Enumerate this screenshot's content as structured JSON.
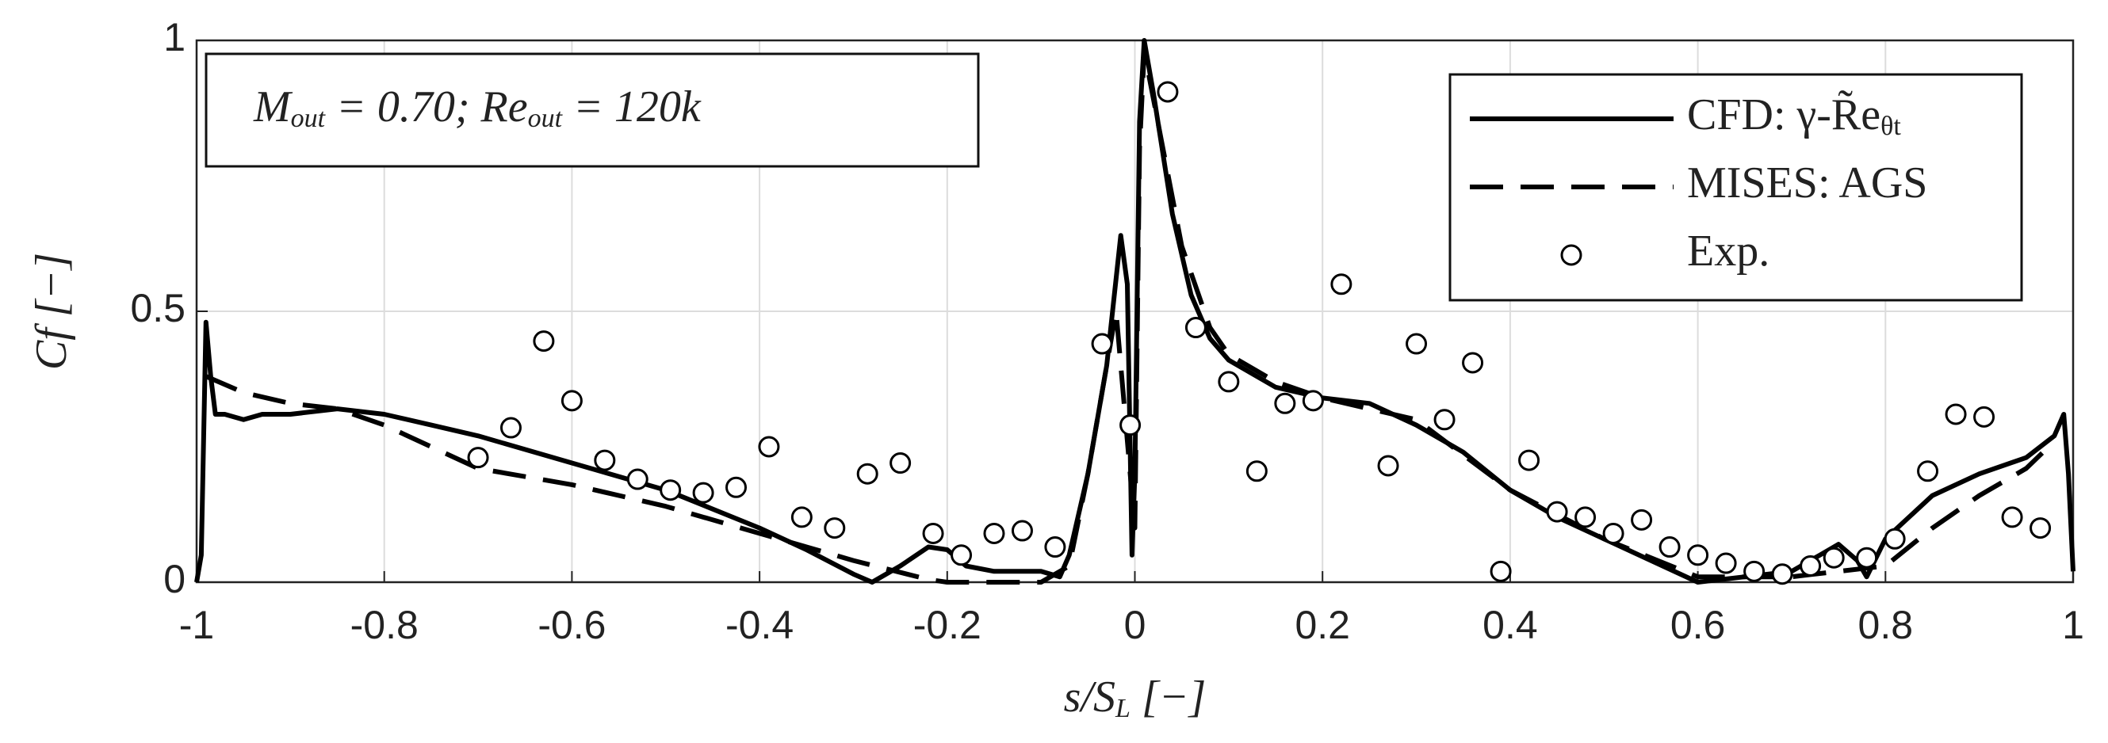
{
  "chart_data": {
    "type": "line",
    "ylabel": [
      "Cf [−]"
    ],
    "xlabel": [
      "s/S",
      "L",
      " [−]"
    ],
    "annotation": [
      "M",
      "out",
      " = 0.70; ",
      "Re",
      "out",
      " = 120k"
    ],
    "xlim": [
      -1,
      1
    ],
    "xticks": [
      -1,
      -0.8,
      -0.6,
      -0.4,
      -0.2,
      0,
      0.2,
      0.4,
      0.6,
      0.8,
      1
    ],
    "ylim": [
      0,
      1
    ],
    "yticks": [
      0,
      0.5,
      1
    ],
    "grid": true,
    "legend": "upper right",
    "series": [
      {
        "name": [
          "CFD: γ-R̃e",
          "θt"
        ],
        "color": "#000000",
        "style": "solid",
        "x": [
          -1,
          -0.995,
          -0.99,
          -0.985,
          -0.98,
          -0.97,
          -0.95,
          -0.93,
          -0.9,
          -0.85,
          -0.8,
          -0.75,
          -0.7,
          -0.6,
          -0.5,
          -0.4,
          -0.35,
          -0.3,
          -0.28,
          -0.25,
          -0.22,
          -0.2,
          -0.18,
          -0.15,
          -0.1,
          -0.08,
          -0.07,
          -0.05,
          -0.03,
          -0.015,
          -0.008,
          -0.003,
          0,
          0.005,
          0.01,
          0.02,
          0.04,
          0.06,
          0.08,
          0.1,
          0.15,
          0.2,
          0.25,
          0.3,
          0.35,
          0.4,
          0.45,
          0.5,
          0.55,
          0.6,
          0.65,
          0.7,
          0.73,
          0.75,
          0.77,
          0.78,
          0.8,
          0.85,
          0.9,
          0.95,
          0.98,
          0.99,
          0.995,
          1
        ],
        "values": [
          0,
          0.05,
          0.48,
          0.38,
          0.31,
          0.31,
          0.3,
          0.31,
          0.31,
          0.32,
          0.31,
          0.29,
          0.27,
          0.22,
          0.17,
          0.1,
          0.06,
          0.015,
          0,
          0.03,
          0.065,
          0.06,
          0.03,
          0.02,
          0.02,
          0.01,
          0.05,
          0.2,
          0.4,
          0.64,
          0.55,
          0.05,
          0.2,
          0.85,
          1,
          0.9,
          0.68,
          0.53,
          0.45,
          0.41,
          0.36,
          0.34,
          0.33,
          0.29,
          0.24,
          0.17,
          0.12,
          0.08,
          0.04,
          0,
          0.01,
          0.02,
          0.05,
          0.07,
          0.04,
          0.01,
          0.08,
          0.16,
          0.2,
          0.23,
          0.27,
          0.31,
          0.2,
          0.02
        ]
      },
      {
        "name": [
          "MISES: AGS"
        ],
        "color": "#000000",
        "style": "dashed",
        "x": [
          -0.99,
          -0.95,
          -0.9,
          -0.85,
          -0.8,
          -0.7,
          -0.6,
          -0.5,
          -0.4,
          -0.3,
          -0.22,
          -0.2,
          -0.18,
          -0.1,
          -0.07,
          -0.05,
          -0.02,
          -0.005,
          0,
          0.005,
          0.01,
          0.03,
          0.05,
          0.08,
          0.1,
          0.15,
          0.2,
          0.3,
          0.4,
          0.5,
          0.6,
          0.7,
          0.75,
          0.8,
          0.85,
          0.9,
          0.95,
          0.98
        ],
        "values": [
          0.38,
          0.35,
          0.33,
          0.32,
          0.29,
          0.21,
          0.18,
          0.14,
          0.09,
          0.04,
          0.005,
          0,
          0,
          0,
          0.03,
          0.2,
          0.5,
          0.2,
          0.1,
          0.8,
          0.98,
          0.8,
          0.62,
          0.47,
          0.42,
          0.37,
          0.34,
          0.3,
          0.17,
          0.08,
          0.01,
          0.01,
          0.02,
          0.03,
          0.1,
          0.16,
          0.21,
          0.26
        ]
      },
      {
        "name": [
          "Exp."
        ],
        "color": "#000000",
        "style": "markers",
        "x": [
          -0.7,
          -0.665,
          -0.63,
          -0.6,
          -0.565,
          -0.53,
          -0.495,
          -0.46,
          -0.425,
          -0.39,
          -0.355,
          -0.32,
          -0.285,
          -0.25,
          -0.215,
          -0.185,
          -0.15,
          -0.12,
          -0.085,
          -0.035,
          -0.005,
          0.035,
          0.065,
          0.1,
          0.13,
          0.16,
          0.19,
          0.22,
          0.27,
          0.3,
          0.33,
          0.36,
          0.39,
          0.42,
          0.45,
          0.48,
          0.51,
          0.54,
          0.57,
          0.6,
          0.63,
          0.66,
          0.69,
          0.72,
          0.745,
          0.78,
          0.81,
          0.845,
          0.875,
          0.905,
          0.935,
          0.965
        ],
        "values": [
          0.23,
          0.285,
          0.445,
          0.335,
          0.225,
          0.19,
          0.17,
          0.165,
          0.175,
          0.25,
          0.12,
          0.1,
          0.2,
          0.22,
          0.09,
          0.05,
          0.09,
          0.095,
          0.065,
          0.44,
          0.29,
          0.905,
          0.47,
          0.37,
          0.205,
          0.33,
          0.335,
          0.55,
          0.215,
          0.44,
          0.3,
          0.405,
          0.02,
          0.225,
          0.13,
          0.12,
          0.09,
          0.115,
          0.065,
          0.05,
          0.035,
          0.02,
          0.015,
          0.03,
          0.045,
          0.045,
          0.08,
          0.205,
          0.31,
          0.305,
          0.12,
          0.1
        ]
      }
    ]
  }
}
